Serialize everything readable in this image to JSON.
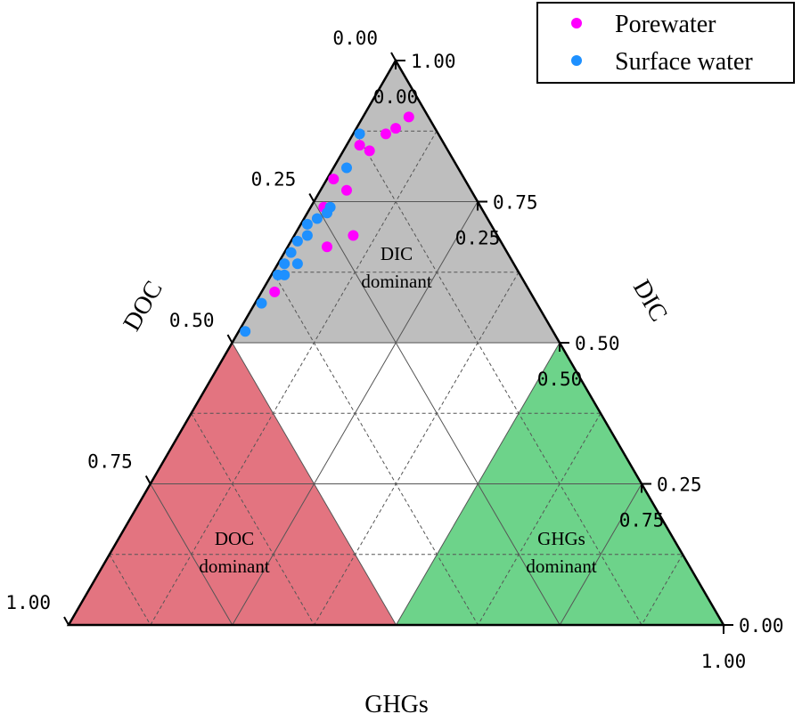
{
  "chart_data": {
    "type": "scatter",
    "subtype": "ternary",
    "axes": {
      "bottom": {
        "title": "GHGs",
        "ticks": [
          "0.00",
          "0.25",
          "0.50",
          "0.75",
          "1.00"
        ]
      },
      "left": {
        "title": "DOC",
        "ticks": [
          "0.00",
          "0.25",
          "0.50",
          "0.75",
          "1.00"
        ]
      },
      "right": {
        "title": "DIC",
        "ticks": [
          "0.00",
          "0.25",
          "0.50",
          "0.75",
          "1.00"
        ]
      },
      "range": [
        0,
        1
      ],
      "grid": true
    },
    "regions": [
      {
        "name": "DIC-region",
        "label_line1": "DIC",
        "label_line2": "dominant",
        "color": "#bebebe",
        "rule": "DIC >= 0.5"
      },
      {
        "name": "DOC-region",
        "label_line1": "DOC",
        "label_line2": "dominant",
        "color": "#e37480",
        "rule": "DOC >= 0.5"
      },
      {
        "name": "GHGs-region",
        "label_line1": "GHGs",
        "label_line2": "dominant",
        "color": "#6dd38a",
        "rule": "GHGs >= 0.5"
      }
    ],
    "legend": {
      "position": "top-right"
    },
    "series": [
      {
        "name": "Porewater",
        "color": "#ff00ff",
        "points": [
          {
            "ghg": 0.07,
            "doc": 0.03
          },
          {
            "ghg": 0.06,
            "doc": 0.06
          },
          {
            "ghg": 0.05,
            "doc": 0.08
          },
          {
            "ghg": 0.02,
            "doc": 0.13
          },
          {
            "ghg": 0.04,
            "doc": 0.12
          },
          {
            "ghg": 0.01,
            "doc": 0.2
          },
          {
            "ghg": 0.04,
            "doc": 0.19
          },
          {
            "ghg": 0.02,
            "doc": 0.24
          },
          {
            "ghg": 0.09,
            "doc": 0.22
          },
          {
            "ghg": 0.06,
            "doc": 0.27
          },
          {
            "ghg": 0.02,
            "doc": 0.39
          }
        ]
      },
      {
        "name": "Surface water",
        "color": "#1e90ff",
        "points": [
          {
            "ghg": 0.01,
            "doc": 0.12
          },
          {
            "ghg": 0.02,
            "doc": 0.17
          },
          {
            "ghg": 0.03,
            "doc": 0.23
          },
          {
            "ghg": 0.03,
            "doc": 0.24
          },
          {
            "ghg": 0.02,
            "doc": 0.26
          },
          {
            "ghg": 0.01,
            "doc": 0.28
          },
          {
            "ghg": 0.02,
            "doc": 0.29
          },
          {
            "ghg": 0.01,
            "doc": 0.31
          },
          {
            "ghg": 0.01,
            "doc": 0.33
          },
          {
            "ghg": 0.03,
            "doc": 0.33
          },
          {
            "ghg": 0.01,
            "doc": 0.35
          },
          {
            "ghg": 0.02,
            "doc": 0.36
          },
          {
            "ghg": 0.01,
            "doc": 0.37
          },
          {
            "ghg": 0.01,
            "doc": 0.42
          },
          {
            "ghg": 0.01,
            "doc": 0.47
          }
        ]
      }
    ]
  }
}
